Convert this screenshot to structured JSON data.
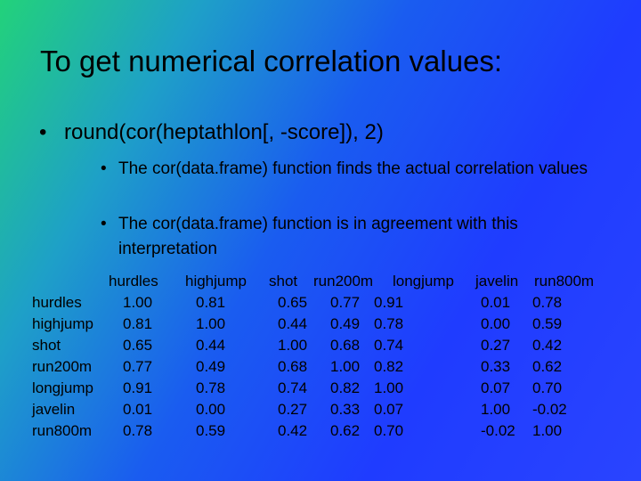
{
  "title": "To get numerical correlation values:",
  "bullets": [
    {
      "text": "round(cor(heptathlon[, -score]), 2)",
      "sub": [
        "The cor(data.frame) function finds the actual correlation values",
        "The cor(data.frame) function is in agreement with this interpretation"
      ]
    }
  ],
  "table": {
    "header": [
      "hurdles",
      "highjump",
      "shot",
      "run200m",
      "longjump",
      "javelin",
      "run800m"
    ],
    "rows": [
      [
        "hurdles",
        "1.00",
        "0.81",
        "0.65",
        "0.77",
        "0.91",
        "0.01",
        "0.78"
      ],
      [
        "highjump",
        "0.81",
        "1.00",
        "0.44",
        "0.49",
        "0.78",
        "0.00",
        "0.59"
      ],
      [
        "shot",
        "0.65",
        "0.44",
        "1.00",
        "0.68",
        "0.74",
        "0.27",
        "0.42"
      ],
      [
        "run200m",
        "0.77",
        "0.49",
        "0.68",
        "1.00",
        "0.82",
        "0.33",
        "0.62"
      ],
      [
        "longjump",
        "0.91",
        "0.78",
        "0.74",
        "0.82",
        "1.00",
        "0.07",
        "0.70"
      ],
      [
        "javelin",
        "0.01",
        "0.00",
        "0.27",
        "0.33",
        "0.07",
        "1.00",
        "-0.02"
      ],
      [
        "run800m",
        "0.78",
        "0.59",
        "0.42",
        "0.62",
        "0.70",
        "-0.02",
        "1.00"
      ]
    ]
  }
}
